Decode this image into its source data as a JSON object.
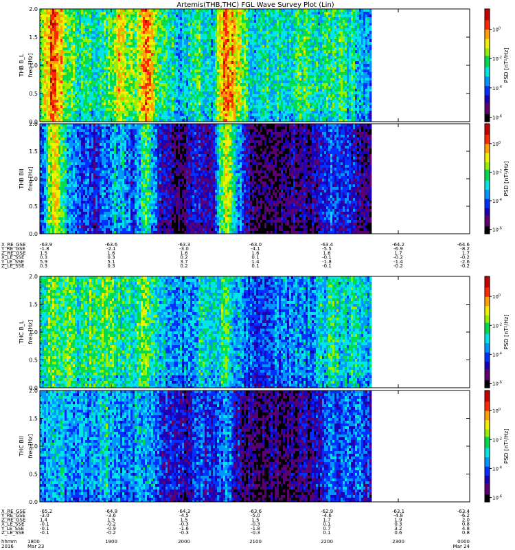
{
  "title": "Artemis(THB,THC) FGL Wave Survey Plot (Lin)",
  "chart_data": {
    "type": "heatmap",
    "title": "Artemis(THB,THC) FGL Wave Survey Plot (Lin)",
    "panels": [
      {
        "probe": "THB",
        "component": "B_L",
        "ylabel": "THB B_L",
        "yunit": "freq [Hz]",
        "zlabel": "PSD [nT²/Hz]",
        "yticks": [
          "0.0",
          "0.5",
          "1.0",
          "1.5",
          "2.0"
        ],
        "ylim": [
          0,
          2
        ],
        "ztick_exponents": [
          "0",
          "-2",
          "-4",
          "-6"
        ],
        "activity": [
          0.55,
          0.9,
          0.6,
          0.5,
          0.5,
          0.55,
          0.7,
          0.55,
          0.85,
          0.5,
          0.45,
          0.4,
          0.55,
          0.4,
          0.9,
          0.65,
          0.45,
          0.5,
          0.5,
          0.5,
          0.55,
          0.45,
          0.55,
          0.5,
          0.45,
          0.4
        ]
      },
      {
        "probe": "THB",
        "component": "B_II",
        "ylabel": "THB BII",
        "yunit": "freq [Hz]",
        "zlabel": "PSD [nT²/Hz]",
        "yticks": [
          "0.0",
          "0.5",
          "1.0",
          "1.5",
          "2.0"
        ],
        "ylim": [
          0,
          2
        ],
        "ztick_exponents": [
          "0",
          "-2",
          "-4",
          "-6"
        ],
        "activity": [
          0.3,
          0.75,
          0.4,
          0.3,
          0.25,
          0.35,
          0.45,
          0.3,
          0.55,
          0.25,
          0.15,
          0.15,
          0.25,
          0.2,
          0.7,
          0.4,
          0.15,
          0.1,
          0.1,
          0.15,
          0.15,
          0.2,
          0.3,
          0.25,
          0.2,
          0.15
        ]
      },
      {
        "probe": "THC",
        "component": "B_L",
        "ylabel": "THC B_L",
        "yunit": "freq [Hz]",
        "zlabel": "PSD [nT²/Hz]",
        "yticks": [
          "0.0",
          "0.5",
          "1.0",
          "1.5",
          "2.0"
        ],
        "ylim": [
          0,
          2
        ],
        "ztick_exponents": [
          "0",
          "-2",
          "-4",
          "-6"
        ],
        "activity": [
          0.5,
          0.6,
          0.55,
          0.5,
          0.55,
          0.6,
          0.5,
          0.5,
          0.6,
          0.45,
          0.4,
          0.35,
          0.45,
          0.4,
          0.55,
          0.4,
          0.3,
          0.3,
          0.35,
          0.35,
          0.35,
          0.4,
          0.5,
          0.45,
          0.5,
          0.4
        ]
      },
      {
        "probe": "THC",
        "component": "B_II",
        "ylabel": "THC BII",
        "yunit": "freq [Hz]",
        "zlabel": "PSD [nT²/Hz]",
        "yticks": [
          "0.0",
          "0.5",
          "1.0",
          "1.5",
          "2.0"
        ],
        "ylim": [
          0,
          2
        ],
        "ztick_exponents": [
          "0",
          "-2",
          "-4",
          "-6"
        ],
        "activity": [
          0.35,
          0.45,
          0.4,
          0.35,
          0.4,
          0.45,
          0.35,
          0.35,
          0.45,
          0.3,
          0.2,
          0.2,
          0.3,
          0.25,
          0.4,
          0.2,
          0.12,
          0.1,
          0.12,
          0.15,
          0.15,
          0.2,
          0.35,
          0.3,
          0.35,
          0.25
        ]
      }
    ],
    "orbit_tables": [
      {
        "rows": [
          {
            "label": "X_RE_GSE",
            "values": [
              "-63.9",
              "-63.6",
              "-63.3",
              "-63.0",
              "-63.4",
              "-64.2",
              "-64.6"
            ]
          },
          {
            "label": "Y_RE_GSE",
            "values": [
              "-1.8",
              "-2.1",
              "-3.0",
              "-4.1",
              "-5.5",
              "-6.9",
              "-8.2"
            ]
          },
          {
            "label": "Z_RE_GSE",
            "values": [
              "1.5",
              "1.6",
              "1.6",
              "1.6",
              "1.6",
              "1.7",
              "1.7"
            ]
          },
          {
            "label": "X_LE_SSE",
            "values": [
              "0.3",
              "0.3",
              "0.2",
              "0.1",
              "-0.1",
              "-0.2",
              "-0.2"
            ]
          },
          {
            "label": "Y_LE_SSE",
            "values": [
              "5.9",
              "5.1",
              "3.7",
              "1.4",
              "-1.8",
              "-1.4",
              "-2.6"
            ]
          },
          {
            "label": "Z_LE_SSE",
            "values": [
              "0.3",
              "0.3",
              "0.2",
              "0.1",
              "-0.1",
              "-0.2",
              "-0.2"
            ]
          }
        ]
      },
      {
        "rows": [
          {
            "label": "X_RE_GSE",
            "values": [
              "-65.2",
              "-64.8",
              "-64.3",
              "-63.6",
              "-62.9",
              "-63.1",
              "-63.4"
            ]
          },
          {
            "label": "Y_RE_GSE",
            "values": [
              "-3.0",
              "-3.6",
              "-4.5",
              "-5.0",
              "-4.6",
              "-4.8",
              "-6.2"
            ]
          },
          {
            "label": "Z_RE_GSE",
            "values": [
              "1.4",
              "1.5",
              "1.5",
              "1.5",
              "1.7",
              "1.9",
              "2.0"
            ]
          },
          {
            "label": "X_LE_SSE",
            "values": [
              "-0.1",
              "-0.2",
              "-0.3",
              "-0.3",
              "0.1",
              "0.3",
              "0.8"
            ]
          },
          {
            "label": "Y_LE_SSE",
            "values": [
              "-0.1",
              "-0.9",
              "-1.6",
              "-1.8",
              "0.7",
              "3.2",
              "4.8"
            ]
          },
          {
            "label": "Z_LE_SSE",
            "values": [
              "-0.1",
              "-0.2",
              "-0.3",
              "-0.3",
              "0.1",
              "0.6",
              "0.8"
            ]
          }
        ]
      }
    ],
    "time_axis": {
      "hhmm_label": "hhmm",
      "hhmm": [
        "1800",
        "1900",
        "2000",
        "2100",
        "2200",
        "2300",
        "0000"
      ],
      "date_label": "2016",
      "dates": [
        "Mar 23",
        "",
        "",
        "",
        "",
        "",
        "Mar 24"
      ]
    }
  },
  "colors": {
    "colormap": [
      "#000000",
      "#5a0070",
      "#1e00b4",
      "#0030ff",
      "#0096ff",
      "#00e6e6",
      "#00dc50",
      "#96f000",
      "#f0f000",
      "#ffa000",
      "#ff2800",
      "#c80000"
    ],
    "frame": "#000000",
    "background": "#ffffff"
  }
}
